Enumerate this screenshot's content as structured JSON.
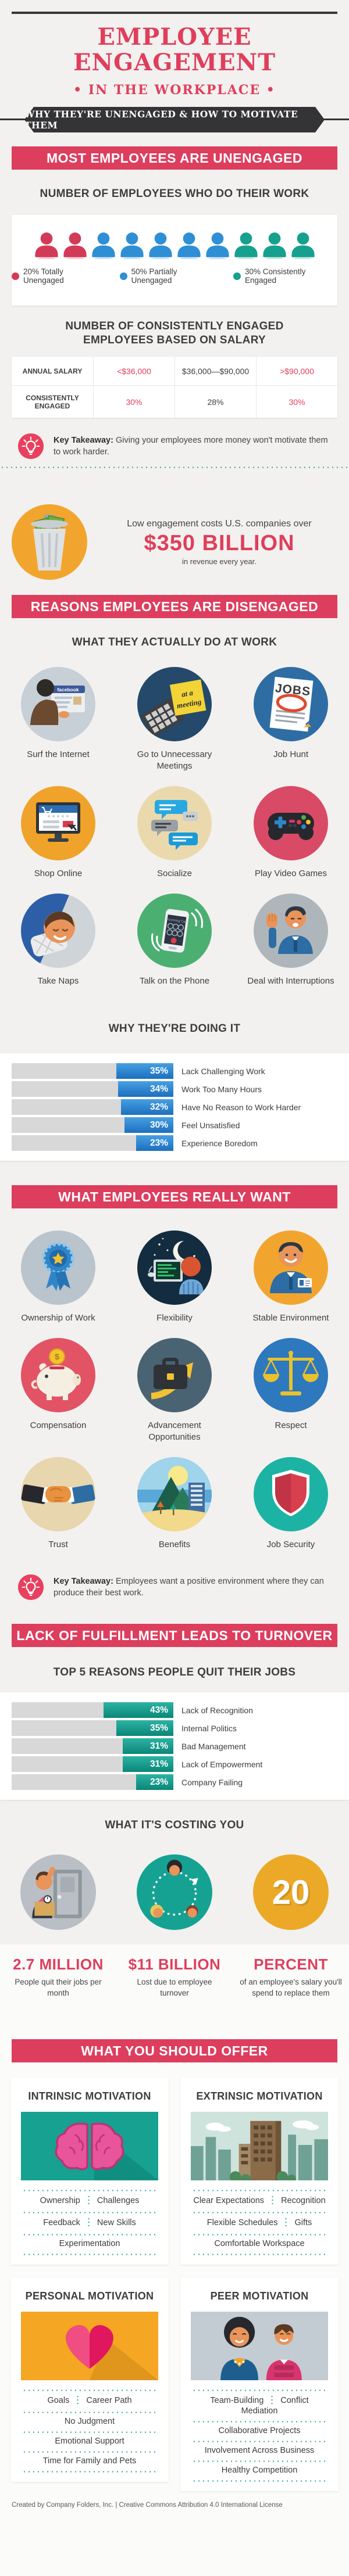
{
  "header": {
    "title": "EMPLOYEE ENGAGEMENT",
    "subtitle": "• IN THE WORKPLACE •",
    "ribbon": "WHY THEY'RE UNENGAGED & HOW TO MOTIVATE THEM"
  },
  "colors": {
    "accent": "#e03e5c",
    "banner": "#dd3e5e",
    "dark": "#343436",
    "teal_dots": "#2ea59c",
    "bar_blue": "#2e87cf",
    "bar_teal": "#13998b",
    "bar_gray": "#d8d8d8",
    "legend_red": "#d23b58",
    "legend_blue": "#2e8fd5",
    "legend_teal": "#17a08d"
  },
  "chart_data": [
    {
      "type": "pie",
      "title": "NUMBER OF EMPLOYEES WHO DO THEIR WORK",
      "labels": [
        "Totally Unengaged",
        "Partially Unengaged",
        "Consistently Engaged"
      ],
      "values": [
        20,
        50,
        30
      ],
      "unit": "percent",
      "note": "shown as 10 person icons: 2 red, 5 blue, 3 teal"
    },
    {
      "type": "table",
      "title": "NUMBER OF CONSISTENTLY ENGAGED EMPLOYEES BASED ON SALARY",
      "columns": [
        "ANNUAL SALARY",
        "<$36,000",
        "$36,000—$90,000",
        ">$90,000"
      ],
      "rows": [
        [
          "CONSISTENTLY ENGAGED",
          "30%",
          "28%",
          "30%"
        ]
      ]
    },
    {
      "type": "bar",
      "title": "WHY THEY'RE DOING IT",
      "orientation": "horizontal",
      "unit": "percent",
      "categories": [
        "Lack Challenging Work",
        "Work Too Many Hours",
        "Have No Reason to Work Harder",
        "Feel Unsatisfied",
        "Experience Boredom"
      ],
      "values": [
        35,
        34,
        32,
        30,
        23
      ]
    },
    {
      "type": "bar",
      "title": "TOP 5 REASONS PEOPLE QUIT THEIR JOBS",
      "orientation": "horizontal",
      "unit": "percent",
      "categories": [
        "Lack of Recognition",
        "Internal Politics",
        "Bad Management",
        "Lack of Empowerment",
        "Company Failing"
      ],
      "values": [
        43,
        35,
        31,
        31,
        23
      ]
    },
    {
      "type": "stats",
      "title": "WHAT IT'S COSTING YOU",
      "values": [
        {
          "value": "2.7 MILLION",
          "desc": "People quit their jobs per month"
        },
        {
          "value": "$11 BILLION",
          "desc": "Lost due to employee turnover"
        },
        {
          "value": "20 PERCENT",
          "desc": "of an employee's salary you'll spend to replace them"
        }
      ]
    }
  ],
  "unengaged": {
    "banner": "MOST EMPLOYEES ARE UNENGAGED",
    "chart_title": "NUMBER OF EMPLOYEES WHO DO THEIR WORK",
    "people": [
      {
        "color": "#d23b58",
        "count": 2
      },
      {
        "color": "#2e8fd5",
        "count": 5
      },
      {
        "color": "#17a08d",
        "count": 3
      }
    ],
    "legend": [
      {
        "color": "#d23b58",
        "label": "20% Totally Unengaged"
      },
      {
        "color": "#2e8fd5",
        "label": "50% Partially Unengaged"
      },
      {
        "color": "#17a08d",
        "label": "30% Consistently Engaged"
      }
    ],
    "salary_title": "NUMBER OF CONSISTENTLY ENGAGED EMPLOYEES BASED ON SALARY",
    "table": {
      "r0c0": "ANNUAL SALARY",
      "r0c1": "<$36,000",
      "r0c2": "$36,000—$90,000",
      "r0c3": ">$90,000",
      "r1c0": "CONSISTENTLY ENGAGED",
      "r1c1": "30%",
      "r1c2": "28%",
      "r1c3": "30%"
    },
    "takeaway_label": "Key Takeaway:",
    "takeaway_text": "Giving your employees more money won't motivate them to work harder.",
    "cost_lead": "Low engagement costs U.S. companies over",
    "cost_amount": "$350 BILLION",
    "cost_tail": "in revenue every year."
  },
  "disengaged": {
    "banner": "REASONS EMPLOYEES ARE DISENGAGED",
    "subtitle": "WHAT THEY ACTUALLY DO AT WORK",
    "activities": [
      {
        "icon": "surf-internet",
        "color": "#c7cfd7",
        "label": "Surf the Internet"
      },
      {
        "icon": "meetings",
        "color": "#24496b",
        "label": "Go to Unnecessary Meetings"
      },
      {
        "icon": "job-hunt",
        "color": "#2e6da4",
        "label": "Job Hunt"
      },
      {
        "icon": "shop-online",
        "color": "#f0a32a",
        "label": "Shop Online"
      },
      {
        "icon": "socialize",
        "color": "#e9d9ad",
        "label": "Socialize"
      },
      {
        "icon": "video-games",
        "color": "#d94a66",
        "label": "Play Video Games"
      },
      {
        "icon": "take-naps",
        "color": "#cfd4d8",
        "label": "Take Naps"
      },
      {
        "icon": "phone",
        "color": "#4caf72",
        "label": "Talk on the Phone"
      },
      {
        "icon": "interruptions",
        "color": "#aeb6bc",
        "label": "Deal with Interruptions"
      }
    ],
    "why_title": "WHY THEY'RE DOING IT"
  },
  "want": {
    "banner": "WHAT EMPLOYEES REALLY WANT",
    "items": [
      {
        "icon": "ownership",
        "color": "#b9c4cd",
        "label": "Ownership of Work"
      },
      {
        "icon": "flexibility",
        "color": "#132c3f",
        "label": "Flexibility"
      },
      {
        "icon": "stable-environment",
        "color": "#f2a52e",
        "label": "Stable Environment"
      },
      {
        "icon": "compensation",
        "color": "#e25365",
        "label": "Compensation"
      },
      {
        "icon": "advancement",
        "color": "#4a6373",
        "label": "Advancement Opportunities"
      },
      {
        "icon": "respect",
        "color": "#2e78bd",
        "label": "Respect"
      },
      {
        "icon": "trust",
        "color": "#e7d6ae",
        "label": "Trust"
      },
      {
        "icon": "benefits",
        "color": "#9fd4ea",
        "label": "Benefits"
      },
      {
        "icon": "job-security",
        "color": "#1cb3a4",
        "label": "Job Security"
      }
    ],
    "takeaway_label": "Key Takeaway:",
    "takeaway_text": "Employees want a positive environment where they can produce their best work."
  },
  "turnover": {
    "banner": "LACK OF FULFILLMENT LEADS TO TURNOVER",
    "subtitle": "TOP 5 REASONS PEOPLE QUIT THEIR JOBS",
    "costing_title": "WHAT IT'S COSTING YOU",
    "costs": [
      {
        "icon": "quit-door",
        "color": "#b9bfc5",
        "value": "2.7 MILLION",
        "desc": "People quit their jobs per month"
      },
      {
        "icon": "turnover-cycle",
        "color": "#16a293",
        "value": "$11 BILLION",
        "desc": "Lost due to employee turnover"
      },
      {
        "icon": "twenty",
        "color": "#eca928",
        "circle_text": "20",
        "value": "PERCENT",
        "desc": "of an employee's salary you'll spend to replace them"
      }
    ]
  },
  "offer": {
    "banner": "WHAT YOU SHOULD OFFER",
    "cards": [
      {
        "title": "INTRINSIC MOTIVATION",
        "image": "brain",
        "rows": [
          [
            "Ownership",
            "Challenges"
          ],
          [
            "Feedback",
            "New Skills"
          ],
          [
            "Experimentation"
          ]
        ]
      },
      {
        "title": "EXTRINSIC MOTIVATION",
        "image": "city",
        "rows": [
          [
            "Clear Expectations",
            "Recognition"
          ],
          [
            "Flexible Schedules",
            "Gifts"
          ],
          [
            "Comfortable Workspace"
          ]
        ]
      },
      {
        "title": "PERSONAL MOTIVATION",
        "image": "heart",
        "rows": [
          [
            "Goals",
            "Career Path"
          ],
          [
            "No Judgment"
          ],
          [
            "Emotional Support"
          ],
          [
            "Time for Family and Pets"
          ]
        ]
      },
      {
        "title": "PEER MOTIVATION",
        "image": "peers",
        "rows": [
          [
            "Team-Building",
            "Conflict Mediation"
          ],
          [
            "Collaborative Projects"
          ],
          [
            "Involvement Across Business"
          ],
          [
            "Healthy Competition"
          ]
        ]
      }
    ]
  },
  "footer": "Created by Company Folders, Inc. | Creative Commons Attribution 4.0 International License"
}
